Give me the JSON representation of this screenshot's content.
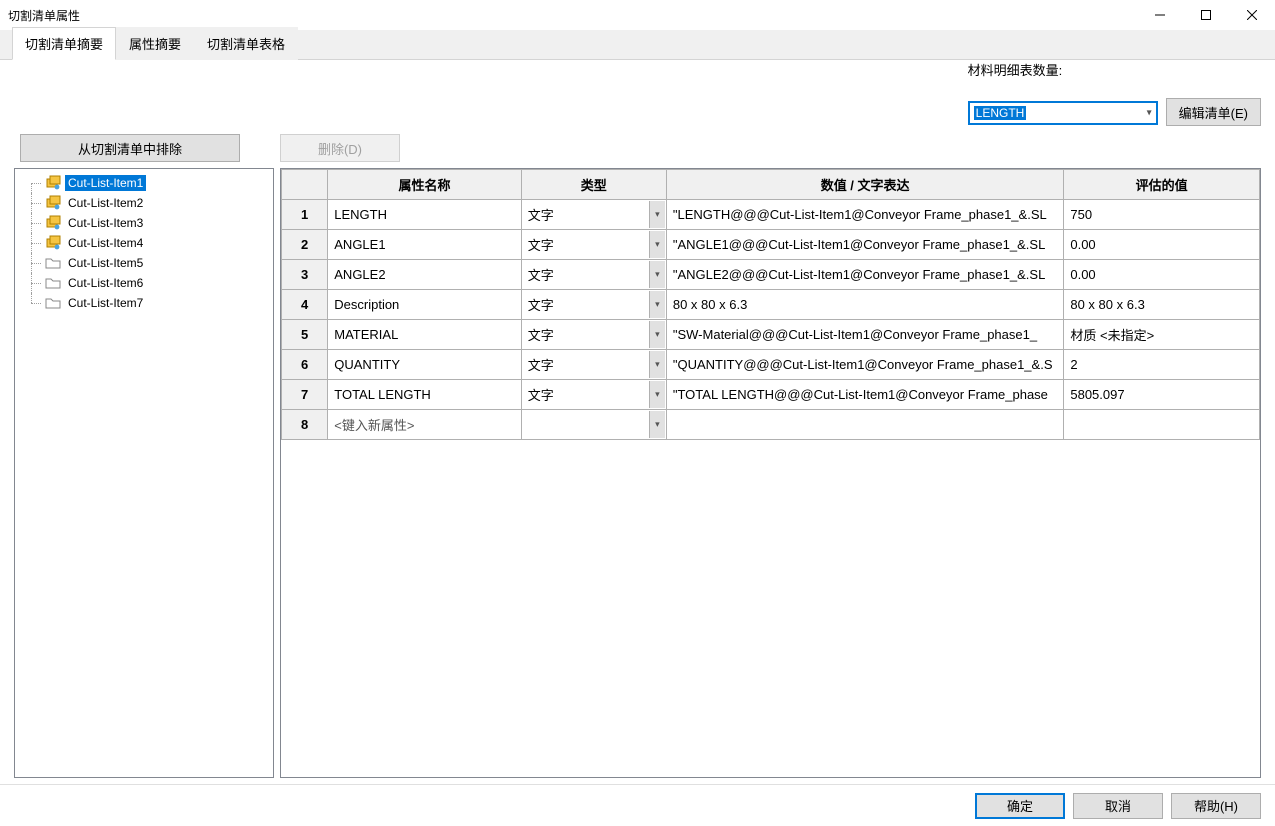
{
  "window": {
    "title": "切割清单属性"
  },
  "tabs": [
    {
      "label": "切割清单摘要",
      "active": true
    },
    {
      "label": "属性摘要",
      "active": false
    },
    {
      "label": "切割清单表格",
      "active": false
    }
  ],
  "bom": {
    "label": "材料明细表数量:",
    "selected": "LENGTH",
    "edit_button": "编辑清单(E)"
  },
  "actions": {
    "exclude": "从切割清单中排除",
    "delete": "删除(D)"
  },
  "tree": {
    "items": [
      {
        "label": "Cut-List-Item1",
        "icon": "weldment",
        "selected": true
      },
      {
        "label": "Cut-List-Item2",
        "icon": "weldment",
        "selected": false
      },
      {
        "label": "Cut-List-Item3",
        "icon": "weldment",
        "selected": false
      },
      {
        "label": "Cut-List-Item4",
        "icon": "weldment",
        "selected": false
      },
      {
        "label": "Cut-List-Item5",
        "icon": "folder",
        "selected": false
      },
      {
        "label": "Cut-List-Item6",
        "icon": "folder",
        "selected": false
      },
      {
        "label": "Cut-List-Item7",
        "icon": "folder",
        "selected": false
      }
    ]
  },
  "grid": {
    "headers": {
      "row": "",
      "name": "属性名称",
      "type": "类型",
      "value": "数值 / 文字表达",
      "eval": "评估的值"
    },
    "rows": [
      {
        "n": "1",
        "name": "LENGTH",
        "type": "文字",
        "value": "\"LENGTH@@@Cut-List-Item1@Conveyor Frame_phase1_&.SL",
        "eval": "750"
      },
      {
        "n": "2",
        "name": "ANGLE1",
        "type": "文字",
        "value": "\"ANGLE1@@@Cut-List-Item1@Conveyor Frame_phase1_&.SL",
        "eval": "0.00"
      },
      {
        "n": "3",
        "name": "ANGLE2",
        "type": "文字",
        "value": "\"ANGLE2@@@Cut-List-Item1@Conveyor Frame_phase1_&.SL",
        "eval": "0.00"
      },
      {
        "n": "4",
        "name": "Description",
        "type": "文字",
        "value": "80 x 80 x 6.3",
        "eval": "80 x 80 x 6.3"
      },
      {
        "n": "5",
        "name": "MATERIAL",
        "type": "文字",
        "value": "\"SW-Material@@@Cut-List-Item1@Conveyor Frame_phase1_",
        "eval": "材质 <未指定>"
      },
      {
        "n": "6",
        "name": "QUANTITY",
        "type": "文字",
        "value": "\"QUANTITY@@@Cut-List-Item1@Conveyor Frame_phase1_&.S",
        "eval": "2"
      },
      {
        "n": "7",
        "name": "TOTAL LENGTH",
        "type": "文字",
        "value": "\"TOTAL LENGTH@@@Cut-List-Item1@Conveyor Frame_phase",
        "eval": "5805.097"
      }
    ],
    "new_row": {
      "n": "8",
      "placeholder": "<键入新属性>"
    }
  },
  "buttons": {
    "ok": "确定",
    "cancel": "取消",
    "help": "帮助(H)"
  }
}
